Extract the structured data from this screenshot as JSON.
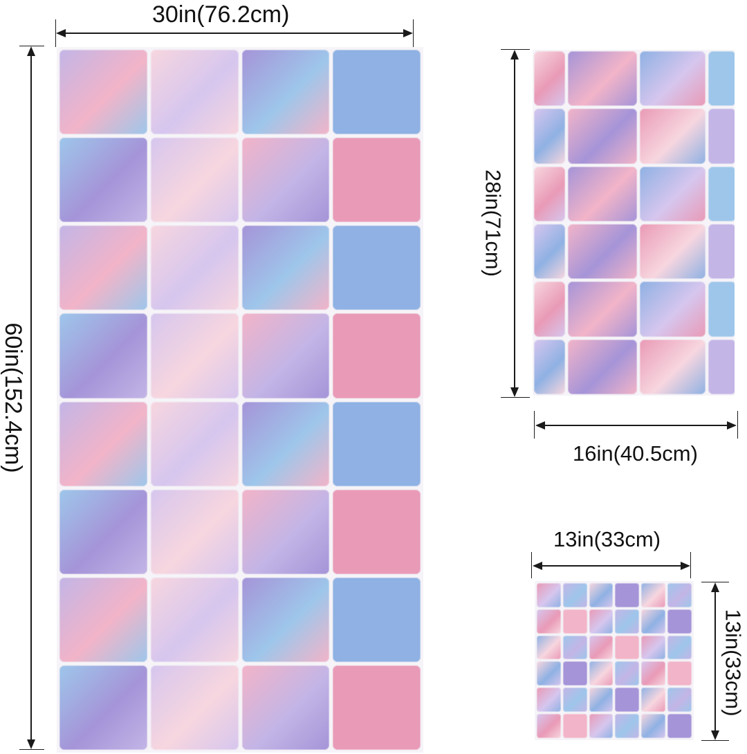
{
  "dimensions": {
    "large_width": "30in(76.2cm)",
    "large_height": "60in(152.4cm)",
    "medium_height": "28in(71cm)",
    "medium_width": "16in(40.5cm)",
    "small_width": "13in(33cm)",
    "small_height": "13in(33cm)"
  },
  "palette": {
    "pink": "#f2b4c8",
    "rose": "#e99ab6",
    "blush": "#f7d6df",
    "lavender": "#c3b5e6",
    "violet": "#a594d8",
    "sky": "#9ec6ea",
    "blue": "#8fb1e3",
    "lilac": "#d6c6ee"
  }
}
